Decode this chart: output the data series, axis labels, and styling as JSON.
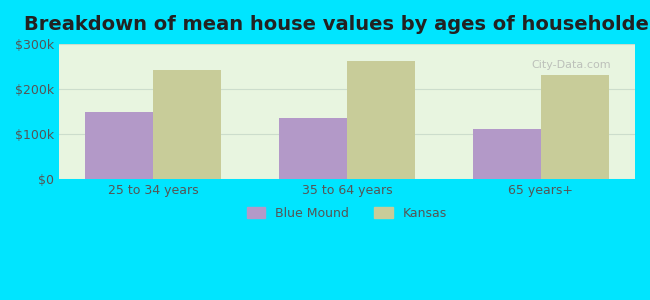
{
  "title": "Breakdown of mean house values by ages of householders",
  "categories": [
    "25 to 34 years",
    "35 to 64 years",
    "65 years+"
  ],
  "blue_mound_values": [
    150000,
    135000,
    112000
  ],
  "kansas_values": [
    242000,
    262000,
    232000
  ],
  "ylim": [
    0,
    300000
  ],
  "yticks": [
    0,
    100000,
    200000,
    300000
  ],
  "ytick_labels": [
    "$0",
    "$100k",
    "$200k",
    "$300k"
  ],
  "bar_color_blue_mound": "#b399c8",
  "bar_color_kansas": "#c8cc99",
  "background_outer": "#00e5ff",
  "background_inner": "#e8f5e0",
  "legend_label_1": "Blue Mound",
  "legend_label_2": "Kansas",
  "title_fontsize": 14,
  "bar_width": 0.35,
  "grid_color": "#ccddcc"
}
